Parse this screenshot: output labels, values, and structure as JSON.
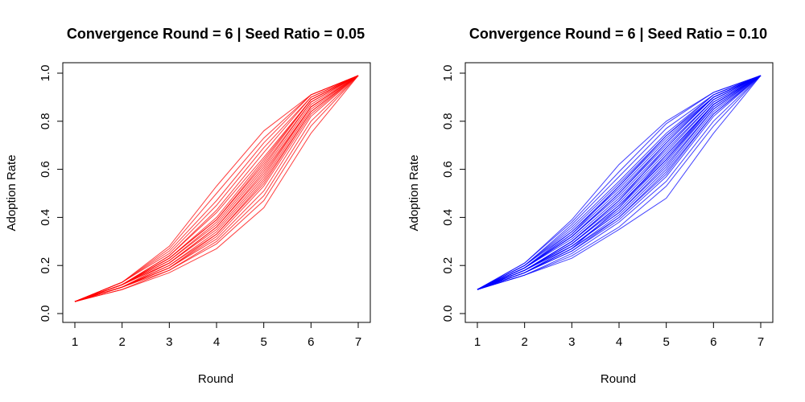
{
  "chart_data": [
    {
      "type": "line",
      "title": "Convergence Round = 6 | Seed Ratio = 0.05",
      "xlabel": "Round",
      "ylabel": "Adoption Rate",
      "xlim": [
        1,
        7
      ],
      "ylim": [
        0,
        1
      ],
      "x_ticks": [
        "1",
        "2",
        "3",
        "4",
        "5",
        "6",
        "7"
      ],
      "y_ticks": [
        "0.0",
        "0.2",
        "0.4",
        "0.6",
        "0.8",
        "1.0"
      ],
      "grid": false,
      "legend": "none",
      "color": "#ff0000",
      "x": [
        1,
        2,
        3,
        4,
        5,
        6,
        7
      ],
      "series": [
        {
          "values": [
            0.05,
            0.1,
            0.17,
            0.27,
            0.44,
            0.75,
            0.99
          ]
        },
        {
          "values": [
            0.05,
            0.1,
            0.18,
            0.29,
            0.47,
            0.78,
            0.99
          ]
        },
        {
          "values": [
            0.05,
            0.11,
            0.18,
            0.3,
            0.49,
            0.8,
            0.99
          ]
        },
        {
          "values": [
            0.05,
            0.11,
            0.19,
            0.31,
            0.51,
            0.82,
            0.99
          ]
        },
        {
          "values": [
            0.05,
            0.11,
            0.19,
            0.32,
            0.53,
            0.83,
            0.99
          ]
        },
        {
          "values": [
            0.05,
            0.11,
            0.2,
            0.33,
            0.54,
            0.84,
            0.99
          ]
        },
        {
          "values": [
            0.05,
            0.11,
            0.2,
            0.34,
            0.56,
            0.85,
            0.99
          ]
        },
        {
          "values": [
            0.05,
            0.12,
            0.21,
            0.35,
            0.57,
            0.86,
            0.99
          ]
        },
        {
          "values": [
            0.05,
            0.12,
            0.21,
            0.36,
            0.58,
            0.86,
            0.99
          ]
        },
        {
          "values": [
            0.05,
            0.12,
            0.22,
            0.37,
            0.6,
            0.87,
            0.99
          ]
        },
        {
          "values": [
            0.05,
            0.12,
            0.22,
            0.38,
            0.61,
            0.88,
            0.99
          ]
        },
        {
          "values": [
            0.05,
            0.12,
            0.23,
            0.39,
            0.62,
            0.88,
            0.99
          ]
        },
        {
          "values": [
            0.05,
            0.12,
            0.23,
            0.4,
            0.64,
            0.89,
            0.99
          ]
        },
        {
          "values": [
            0.05,
            0.12,
            0.24,
            0.42,
            0.65,
            0.89,
            0.99
          ]
        },
        {
          "values": [
            0.05,
            0.12,
            0.24,
            0.43,
            0.67,
            0.9,
            0.99
          ]
        },
        {
          "values": [
            0.05,
            0.13,
            0.25,
            0.45,
            0.69,
            0.9,
            0.99
          ]
        },
        {
          "values": [
            0.05,
            0.13,
            0.26,
            0.47,
            0.71,
            0.91,
            0.99
          ]
        },
        {
          "values": [
            0.05,
            0.13,
            0.27,
            0.5,
            0.73,
            0.91,
            0.99
          ]
        },
        {
          "values": [
            0.05,
            0.13,
            0.28,
            0.53,
            0.76,
            0.91,
            0.99
          ]
        },
        {
          "values": [
            0.05,
            0.11,
            0.21,
            0.36,
            0.59,
            0.86,
            0.99
          ]
        },
        {
          "values": [
            0.05,
            0.12,
            0.23,
            0.39,
            0.63,
            0.89,
            0.99
          ]
        },
        {
          "values": [
            0.05,
            0.11,
            0.19,
            0.33,
            0.55,
            0.84,
            0.99
          ]
        }
      ]
    },
    {
      "type": "line",
      "title": "Convergence Round = 6 | Seed Ratio = 0.10",
      "xlabel": "Round",
      "ylabel": "Adoption Rate",
      "xlim": [
        1,
        7
      ],
      "ylim": [
        0,
        1
      ],
      "x_ticks": [
        "1",
        "2",
        "3",
        "4",
        "5",
        "6",
        "7"
      ],
      "y_ticks": [
        "0.0",
        "0.2",
        "0.4",
        "0.6",
        "0.8",
        "1.0"
      ],
      "grid": false,
      "legend": "none",
      "color": "#0000ff",
      "x": [
        1,
        2,
        3,
        4,
        5,
        6,
        7
      ],
      "series": [
        {
          "values": [
            0.1,
            0.16,
            0.23,
            0.35,
            0.48,
            0.75,
            0.99
          ]
        },
        {
          "values": [
            0.1,
            0.16,
            0.24,
            0.36,
            0.53,
            0.78,
            0.99
          ]
        },
        {
          "values": [
            0.1,
            0.16,
            0.25,
            0.38,
            0.55,
            0.8,
            0.99
          ]
        },
        {
          "values": [
            0.1,
            0.17,
            0.26,
            0.39,
            0.57,
            0.82,
            0.99
          ]
        },
        {
          "values": [
            0.1,
            0.17,
            0.26,
            0.4,
            0.59,
            0.83,
            0.99
          ]
        },
        {
          "values": [
            0.1,
            0.17,
            0.27,
            0.41,
            0.6,
            0.84,
            0.99
          ]
        },
        {
          "values": [
            0.1,
            0.17,
            0.28,
            0.42,
            0.62,
            0.85,
            0.99
          ]
        },
        {
          "values": [
            0.1,
            0.18,
            0.28,
            0.43,
            0.63,
            0.86,
            0.99
          ]
        },
        {
          "values": [
            0.1,
            0.18,
            0.29,
            0.44,
            0.64,
            0.86,
            0.99
          ]
        },
        {
          "values": [
            0.1,
            0.18,
            0.29,
            0.45,
            0.65,
            0.87,
            0.99
          ]
        },
        {
          "values": [
            0.1,
            0.18,
            0.3,
            0.46,
            0.66,
            0.87,
            0.99
          ]
        },
        {
          "values": [
            0.1,
            0.18,
            0.3,
            0.47,
            0.67,
            0.88,
            0.99
          ]
        },
        {
          "values": [
            0.1,
            0.19,
            0.31,
            0.48,
            0.68,
            0.88,
            0.99
          ]
        },
        {
          "values": [
            0.1,
            0.19,
            0.32,
            0.49,
            0.69,
            0.89,
            0.99
          ]
        },
        {
          "values": [
            0.1,
            0.19,
            0.32,
            0.5,
            0.7,
            0.89,
            0.99
          ]
        },
        {
          "values": [
            0.1,
            0.19,
            0.33,
            0.51,
            0.71,
            0.9,
            0.99
          ]
        },
        {
          "values": [
            0.1,
            0.19,
            0.34,
            0.52,
            0.72,
            0.9,
            0.99
          ]
        },
        {
          "values": [
            0.1,
            0.2,
            0.34,
            0.53,
            0.73,
            0.9,
            0.99
          ]
        },
        {
          "values": [
            0.1,
            0.2,
            0.35,
            0.54,
            0.74,
            0.91,
            0.99
          ]
        },
        {
          "values": [
            0.1,
            0.2,
            0.36,
            0.55,
            0.75,
            0.91,
            0.99
          ]
        },
        {
          "values": [
            0.1,
            0.2,
            0.37,
            0.57,
            0.77,
            0.91,
            0.99
          ]
        },
        {
          "values": [
            0.1,
            0.21,
            0.38,
            0.59,
            0.79,
            0.92,
            0.99
          ]
        },
        {
          "values": [
            0.1,
            0.21,
            0.39,
            0.62,
            0.8,
            0.92,
            0.99
          ]
        },
        {
          "values": [
            0.1,
            0.17,
            0.27,
            0.44,
            0.66,
            0.87,
            0.99
          ]
        },
        {
          "values": [
            0.1,
            0.18,
            0.3,
            0.47,
            0.69,
            0.89,
            0.99
          ]
        },
        {
          "values": [
            0.1,
            0.19,
            0.32,
            0.5,
            0.71,
            0.9,
            0.99
          ]
        },
        {
          "values": [
            0.1,
            0.18,
            0.28,
            0.42,
            0.61,
            0.85,
            0.99
          ]
        },
        {
          "values": [
            0.1,
            0.17,
            0.27,
            0.4,
            0.58,
            0.83,
            0.99
          ]
        },
        {
          "values": [
            0.1,
            0.19,
            0.33,
            0.53,
            0.74,
            0.9,
            0.99
          ]
        },
        {
          "values": [
            0.1,
            0.18,
            0.29,
            0.45,
            0.64,
            0.87,
            0.99
          ]
        }
      ]
    }
  ]
}
